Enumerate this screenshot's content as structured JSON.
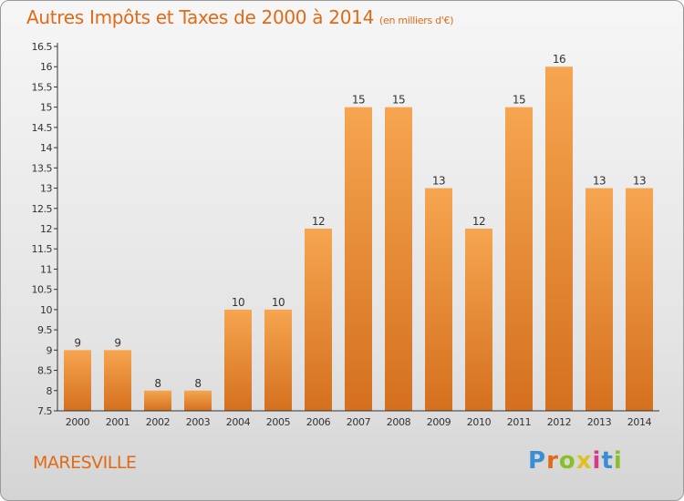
{
  "header": {
    "title": "Autres Impôts et Taxes de 2000 à 2014",
    "subtitle": "(en milliers d'€)"
  },
  "footer": {
    "location": "MARESVILLE",
    "brand": "Proxiti",
    "brand_colors": [
      "#3a8fd4",
      "#e06a18",
      "#8bbf2a",
      "#e0c020",
      "#d83a8a",
      "#3a8fd4",
      "#8bbf2a"
    ]
  },
  "colors": {
    "accent": "#e06a18",
    "bar_top": "#f6a550",
    "bar_bottom": "#d4701e",
    "axis": "#333333"
  },
  "chart_data": {
    "type": "bar",
    "title": "Autres Impôts et Taxes de 2000 à 2014",
    "subtitle": "(en milliers d'€)",
    "xlabel": "",
    "ylabel": "",
    "categories": [
      "2000",
      "2001",
      "2002",
      "2003",
      "2004",
      "2005",
      "2006",
      "2007",
      "2008",
      "2009",
      "2010",
      "2011",
      "2012",
      "2013",
      "2014"
    ],
    "values": [
      9,
      9,
      8,
      8,
      10,
      10,
      12,
      15,
      15,
      13,
      12,
      15,
      16,
      13,
      13
    ],
    "value_labels": [
      "9",
      "9",
      "8",
      "8",
      "10",
      "10",
      "12",
      "15",
      "15",
      "13",
      "12",
      "15",
      "16",
      "13",
      "13"
    ],
    "ylim": [
      7.5,
      16.5
    ],
    "yticks": [
      7.5,
      8,
      8.5,
      9,
      9.5,
      10,
      10.5,
      11,
      11.5,
      12,
      12.5,
      13,
      13.5,
      14,
      14.5,
      15,
      15.5,
      16,
      16.5
    ],
    "ytick_labels": [
      "7.5",
      "8",
      "8.5",
      "9",
      "9.5",
      "10",
      "10.5",
      "11",
      "11.5",
      "12",
      "12.5",
      "13",
      "13.5",
      "14",
      "14.5",
      "15",
      "15.5",
      "16",
      "16.5"
    ],
    "grid": false,
    "legend": "none"
  }
}
